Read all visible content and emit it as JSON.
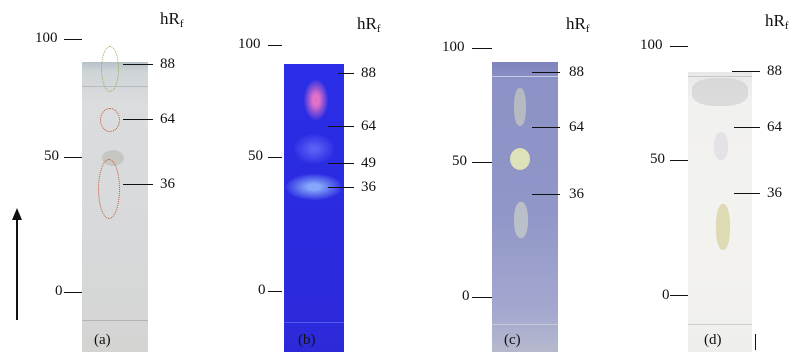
{
  "unit_label": "hR",
  "unit_sub": "f",
  "panels": [
    {
      "caption": "(a)",
      "axis": [
        "100",
        "50",
        "0"
      ],
      "marks": [
        "88",
        "64",
        "36"
      ]
    },
    {
      "caption": "(b)",
      "axis": [
        "100",
        "50",
        "0"
      ],
      "marks": [
        "88",
        "64",
        "49",
        "36"
      ]
    },
    {
      "caption": "(c)",
      "axis": [
        "100",
        "50",
        "0"
      ],
      "marks": [
        "88",
        "64",
        "36"
      ]
    },
    {
      "caption": "(d)",
      "axis": [
        "100",
        "50",
        "0"
      ],
      "marks": [
        "88",
        "64",
        "36"
      ]
    }
  ],
  "colors": {
    "plate_a": "#d9dcde",
    "plate_b": "#2b2fe0",
    "plate_c": "#8e94c6",
    "plate_d": "#f2f1ec",
    "ellipse_green": "#9aa84a",
    "ellipse_orange": "#c0562a"
  },
  "icons": {
    "direction_arrow": "arrow-up-icon"
  }
}
